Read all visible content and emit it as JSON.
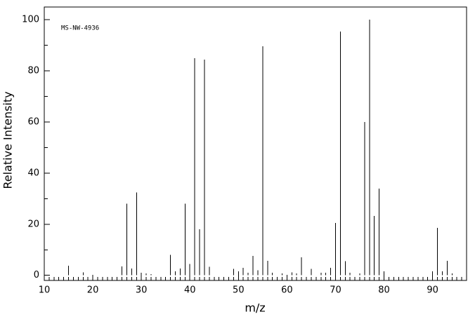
{
  "chart_data": {
    "type": "bar",
    "annotation": "MS-NW-4936",
    "xlabel": "m/z",
    "ylabel": "Relative Intensity",
    "x": [
      15,
      18,
      26,
      27,
      28,
      29,
      30,
      31,
      32,
      36,
      37,
      38,
      39,
      40,
      41,
      42,
      43,
      44,
      49,
      50,
      51,
      52,
      53,
      54,
      55,
      56,
      57,
      59,
      61,
      62,
      63,
      65,
      67,
      68,
      69,
      70,
      71,
      72,
      73,
      75,
      76,
      77,
      78,
      79,
      80,
      90,
      91,
      92,
      93,
      94
    ],
    "values": [
      3.8,
      1.2,
      3.5,
      28,
      2.7,
      32.5,
      1,
      0.8,
      0.5,
      8,
      1.5,
      2.7,
      28.1,
      4.4,
      85,
      18,
      84.4,
      3.3,
      2.5,
      1.5,
      3,
      1,
      7.6,
      2,
      89.6,
      5.7,
      1,
      0.8,
      1.2,
      0.8,
      7.1,
      2.5,
      1,
      1,
      3,
      20.5,
      95.4,
      5.5,
      1,
      0.8,
      60,
      100,
      23.2,
      33.9,
      1.5,
      1.5,
      18.6,
      1.5,
      5.7,
      0.8
    ],
    "color": "#000000",
    "xlim": [
      10,
      97
    ],
    "ylim": [
      -2,
      105
    ],
    "xticks": [
      10,
      20,
      30,
      40,
      50,
      60,
      70,
      80,
      90
    ],
    "yticks": [
      0,
      20,
      40,
      60,
      80,
      100
    ],
    "xminorticks": [
      11,
      12,
      13,
      14,
      15,
      16,
      17,
      18,
      19,
      21,
      22,
      23,
      24,
      25,
      26,
      27,
      28,
      29,
      31,
      32,
      33,
      34,
      35,
      36,
      37,
      38,
      39,
      41,
      42,
      43,
      44,
      45,
      46,
      47,
      48,
      49,
      51,
      52,
      53,
      54,
      55,
      56,
      57,
      58,
      59,
      61,
      62,
      63,
      64,
      65,
      66,
      67,
      68,
      69,
      71,
      72,
      73,
      74,
      75,
      76,
      77,
      78,
      79,
      81,
      82,
      83,
      84,
      85,
      86,
      87,
      88,
      89,
      91,
      92,
      93,
      94,
      95,
      96
    ],
    "yminorticks": [
      10,
      30,
      50,
      70,
      90
    ]
  }
}
